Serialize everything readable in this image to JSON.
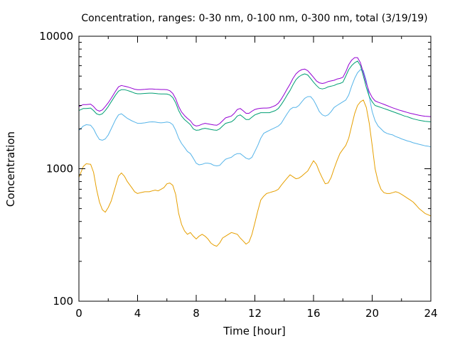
{
  "chart_data": {
    "type": "line",
    "title": "Concentration, ranges: 0-30 nm, 0-100 nm, 0-300 nm, total (3/19/19)",
    "xlabel": "Time [hour]",
    "ylabel": "Concentration",
    "x_scale": "linear",
    "y_scale": "log",
    "xlim": [
      0,
      24
    ],
    "ylim": [
      100,
      10000
    ],
    "x_ticks": [
      0,
      4,
      8,
      12,
      16,
      20,
      24
    ],
    "x_tick_labels": [
      "0",
      "4",
      "8",
      "12",
      "16",
      "20",
      "24"
    ],
    "y_ticks": [
      100,
      1000,
      10000
    ],
    "y_tick_labels": [
      "100",
      "1000",
      "10000"
    ],
    "grid": false,
    "legend": "none",
    "series": [
      {
        "color": "#e69f00",
        "x": [
          0,
          0.3,
          0.5,
          0.8,
          1.0,
          1.2,
          1.4,
          1.6,
          1.8,
          2.0,
          2.2,
          2.5,
          2.7,
          2.9,
          3.1,
          3.3,
          3.6,
          3.8,
          4.0,
          4.2,
          4.5,
          4.8,
          5.0,
          5.2,
          5.4,
          5.6,
          5.8,
          6.0,
          6.2,
          6.4,
          6.6,
          6.8,
          7.0,
          7.2,
          7.4,
          7.6,
          7.8,
          8.0,
          8.2,
          8.4,
          8.6,
          8.8,
          9.0,
          9.2,
          9.4,
          9.6,
          9.8,
          10.0,
          10.2,
          10.4,
          10.6,
          10.8,
          11.0,
          11.2,
          11.4,
          11.6,
          11.8,
          12.0,
          12.2,
          12.4,
          12.6,
          12.8,
          13.0,
          13.2,
          13.4,
          13.6,
          13.8,
          14.0,
          14.2,
          14.4,
          14.6,
          14.8,
          15.0,
          15.2,
          15.4,
          15.6,
          15.8,
          16.0,
          16.2,
          16.4,
          16.6,
          16.8,
          17.0,
          17.2,
          17.4,
          17.6,
          17.8,
          18.0,
          18.2,
          18.4,
          18.6,
          18.8,
          19.0,
          19.2,
          19.4,
          19.6,
          19.8,
          20.0,
          20.2,
          20.4,
          20.6,
          20.8,
          21.0,
          21.2,
          21.4,
          21.6,
          21.8,
          22.0,
          22.2,
          22.4,
          22.6,
          22.8,
          23.0,
          23.2,
          23.4,
          23.6,
          23.8,
          24.0
        ],
        "y": [
          860,
          1040,
          1090,
          1080,
          940,
          700,
          560,
          490,
          470,
          510,
          570,
          740,
          880,
          930,
          880,
          800,
          720,
          670,
          650,
          660,
          670,
          670,
          680,
          690,
          680,
          700,
          720,
          770,
          780,
          750,
          640,
          460,
          380,
          340,
          320,
          330,
          310,
          295,
          310,
          320,
          310,
          295,
          275,
          265,
          260,
          275,
          300,
          310,
          320,
          330,
          325,
          320,
          300,
          285,
          270,
          280,
          320,
          390,
          480,
          580,
          620,
          650,
          660,
          670,
          680,
          700,
          750,
          800,
          850,
          900,
          870,
          840,
          850,
          880,
          920,
          960,
          1050,
          1150,
          1080,
          950,
          850,
          770,
          780,
          860,
          1000,
          1150,
          1300,
          1400,
          1500,
          1700,
          2100,
          2600,
          3000,
          3200,
          3300,
          2900,
          2200,
          1500,
          1000,
          800,
          700,
          660,
          650,
          650,
          660,
          670,
          660,
          640,
          620,
          600,
          580,
          560,
          530,
          500,
          480,
          460,
          450,
          440
        ]
      },
      {
        "color": "#56b4e9",
        "x": [
          0,
          0.3,
          0.5,
          0.8,
          1.0,
          1.2,
          1.4,
          1.6,
          1.8,
          2.0,
          2.2,
          2.5,
          2.7,
          2.9,
          3.1,
          3.3,
          3.6,
          3.8,
          4.0,
          4.2,
          4.5,
          4.8,
          5.0,
          5.2,
          5.4,
          5.6,
          5.8,
          6.0,
          6.2,
          6.4,
          6.6,
          6.8,
          7.0,
          7.2,
          7.4,
          7.6,
          7.8,
          8.0,
          8.2,
          8.4,
          8.6,
          8.8,
          9.0,
          9.2,
          9.4,
          9.6,
          9.8,
          10.0,
          10.2,
          10.4,
          10.6,
          10.8,
          11.0,
          11.2,
          11.4,
          11.6,
          11.8,
          12.0,
          12.2,
          12.4,
          12.6,
          12.8,
          13.0,
          13.2,
          13.4,
          13.6,
          13.8,
          14.0,
          14.2,
          14.4,
          14.6,
          14.8,
          15.0,
          15.2,
          15.4,
          15.6,
          15.8,
          16.0,
          16.2,
          16.4,
          16.6,
          16.8,
          17.0,
          17.2,
          17.4,
          17.6,
          17.8,
          18.0,
          18.2,
          18.4,
          18.6,
          18.8,
          19.0,
          19.2,
          19.4,
          19.6,
          19.8,
          20.0,
          20.2,
          20.4,
          20.6,
          20.8,
          21.0,
          21.2,
          21.4,
          21.6,
          21.8,
          22.0,
          22.2,
          22.4,
          22.6,
          22.8,
          23.0,
          23.2,
          23.4,
          23.6,
          23.8,
          24.0
        ],
        "y": [
          1950,
          2100,
          2150,
          2130,
          2000,
          1800,
          1660,
          1640,
          1680,
          1800,
          2000,
          2350,
          2550,
          2600,
          2500,
          2400,
          2300,
          2250,
          2200,
          2200,
          2220,
          2250,
          2260,
          2250,
          2230,
          2220,
          2230,
          2250,
          2230,
          2150,
          1950,
          1700,
          1550,
          1450,
          1350,
          1300,
          1200,
          1100,
          1070,
          1080,
          1100,
          1100,
          1090,
          1060,
          1050,
          1060,
          1120,
          1180,
          1200,
          1220,
          1270,
          1300,
          1300,
          1250,
          1200,
          1180,
          1220,
          1350,
          1500,
          1700,
          1850,
          1900,
          1950,
          2000,
          2050,
          2100,
          2200,
          2400,
          2600,
          2800,
          2900,
          2900,
          3000,
          3200,
          3400,
          3500,
          3500,
          3300,
          3000,
          2700,
          2550,
          2500,
          2550,
          2700,
          2900,
          3000,
          3100,
          3200,
          3300,
          3600,
          4200,
          4800,
          5300,
          5600,
          5500,
          4600,
          3500,
          2700,
          2300,
          2100,
          2000,
          1900,
          1850,
          1820,
          1800,
          1750,
          1720,
          1680,
          1650,
          1620,
          1600,
          1570,
          1550,
          1530,
          1510,
          1490,
          1480,
          1460
        ]
      },
      {
        "color": "#009e73",
        "x": [
          0,
          0.3,
          0.5,
          0.8,
          1.0,
          1.2,
          1.4,
          1.6,
          1.8,
          2.0,
          2.2,
          2.5,
          2.7,
          2.9,
          3.1,
          3.3,
          3.6,
          3.8,
          4.0,
          4.2,
          4.5,
          4.8,
          5.0,
          5.2,
          5.4,
          5.6,
          5.8,
          6.0,
          6.2,
          6.4,
          6.6,
          6.8,
          7.0,
          7.2,
          7.4,
          7.6,
          7.8,
          8.0,
          8.2,
          8.4,
          8.6,
          8.8,
          9.0,
          9.2,
          9.4,
          9.6,
          9.8,
          10.0,
          10.2,
          10.4,
          10.6,
          10.8,
          11.0,
          11.2,
          11.4,
          11.6,
          11.8,
          12.0,
          12.2,
          12.4,
          12.6,
          12.8,
          13.0,
          13.2,
          13.4,
          13.6,
          13.8,
          14.0,
          14.2,
          14.4,
          14.6,
          14.8,
          15.0,
          15.2,
          15.4,
          15.6,
          15.8,
          16.0,
          16.2,
          16.4,
          16.6,
          16.8,
          17.0,
          17.2,
          17.4,
          17.6,
          17.8,
          18.0,
          18.2,
          18.4,
          18.6,
          18.8,
          19.0,
          19.2,
          19.4,
          19.6,
          19.8,
          20.0,
          20.2,
          20.4,
          20.6,
          20.8,
          21.0,
          21.2,
          21.4,
          21.6,
          21.8,
          22.0,
          22.2,
          22.4,
          22.6,
          22.8,
          23.0,
          23.2,
          23.4,
          23.6,
          23.8,
          24.0
        ],
        "y": [
          2750,
          2850,
          2850,
          2870,
          2750,
          2600,
          2550,
          2600,
          2750,
          2950,
          3200,
          3600,
          3850,
          3950,
          3950,
          3900,
          3800,
          3720,
          3680,
          3680,
          3700,
          3720,
          3720,
          3700,
          3680,
          3670,
          3670,
          3660,
          3600,
          3450,
          3150,
          2750,
          2500,
          2350,
          2250,
          2150,
          2000,
          1950,
          1960,
          2000,
          2020,
          2000,
          1980,
          1960,
          1950,
          2000,
          2100,
          2200,
          2230,
          2260,
          2350,
          2500,
          2550,
          2450,
          2350,
          2350,
          2450,
          2550,
          2600,
          2650,
          2650,
          2650,
          2650,
          2700,
          2750,
          2850,
          3050,
          3300,
          3600,
          3900,
          4300,
          4700,
          4950,
          5100,
          5200,
          5100,
          4800,
          4500,
          4250,
          4050,
          4000,
          4050,
          4150,
          4200,
          4250,
          4350,
          4400,
          4500,
          5000,
          5600,
          6000,
          6300,
          6500,
          6000,
          5000,
          4100,
          3500,
          3200,
          3000,
          2950,
          2900,
          2850,
          2800,
          2750,
          2700,
          2650,
          2600,
          2550,
          2500,
          2470,
          2420,
          2380,
          2350,
          2320,
          2300,
          2280,
          2270,
          2260
        ]
      },
      {
        "color": "#9400d3",
        "x": [
          0,
          0.3,
          0.5,
          0.8,
          1.0,
          1.2,
          1.4,
          1.6,
          1.8,
          2.0,
          2.2,
          2.5,
          2.7,
          2.9,
          3.1,
          3.3,
          3.6,
          3.8,
          4.0,
          4.2,
          4.5,
          4.8,
          5.0,
          5.2,
          5.4,
          5.6,
          5.8,
          6.0,
          6.2,
          6.4,
          6.6,
          6.8,
          7.0,
          7.2,
          7.4,
          7.6,
          7.8,
          8.0,
          8.2,
          8.4,
          8.6,
          8.8,
          9.0,
          9.2,
          9.4,
          9.6,
          9.8,
          10.0,
          10.2,
          10.4,
          10.6,
          10.8,
          11.0,
          11.2,
          11.4,
          11.6,
          11.8,
          12.0,
          12.2,
          12.4,
          12.6,
          12.8,
          13.0,
          13.2,
          13.4,
          13.6,
          13.8,
          14.0,
          14.2,
          14.4,
          14.6,
          14.8,
          15.0,
          15.2,
          15.4,
          15.6,
          15.8,
          16.0,
          16.2,
          16.4,
          16.6,
          16.8,
          17.0,
          17.2,
          17.4,
          17.6,
          17.8,
          18.0,
          18.2,
          18.4,
          18.6,
          18.8,
          19.0,
          19.2,
          19.4,
          19.6,
          19.8,
          20.0,
          20.2,
          20.4,
          20.6,
          20.8,
          21.0,
          21.2,
          21.4,
          21.6,
          21.8,
          22.0,
          22.2,
          22.4,
          22.6,
          22.8,
          23.0,
          23.2,
          23.4,
          23.6,
          23.8,
          24.0
        ],
        "y": [
          2950,
          3050,
          3050,
          3070,
          2950,
          2780,
          2720,
          2780,
          2950,
          3150,
          3400,
          3850,
          4150,
          4250,
          4200,
          4150,
          4050,
          3980,
          3950,
          3950,
          3970,
          4000,
          4000,
          3980,
          3970,
          3960,
          3960,
          3950,
          3880,
          3700,
          3380,
          2950,
          2680,
          2520,
          2400,
          2300,
          2150,
          2100,
          2120,
          2170,
          2200,
          2180,
          2160,
          2140,
          2130,
          2190,
          2300,
          2420,
          2460,
          2500,
          2620,
          2800,
          2850,
          2740,
          2620,
          2620,
          2720,
          2800,
          2840,
          2860,
          2870,
          2870,
          2880,
          2940,
          3000,
          3120,
          3350,
          3650,
          4000,
          4350,
          4800,
          5200,
          5450,
          5600,
          5650,
          5500,
          5200,
          4900,
          4600,
          4450,
          4400,
          4450,
          4550,
          4600,
          4650,
          4750,
          4800,
          4900,
          5400,
          6100,
          6600,
          6900,
          6900,
          6300,
          5300,
          4400,
          3800,
          3450,
          3250,
          3180,
          3120,
          3060,
          3000,
          2940,
          2880,
          2830,
          2780,
          2740,
          2700,
          2660,
          2620,
          2590,
          2560,
          2530,
          2510,
          2490,
          2480,
          2470
        ]
      }
    ]
  }
}
